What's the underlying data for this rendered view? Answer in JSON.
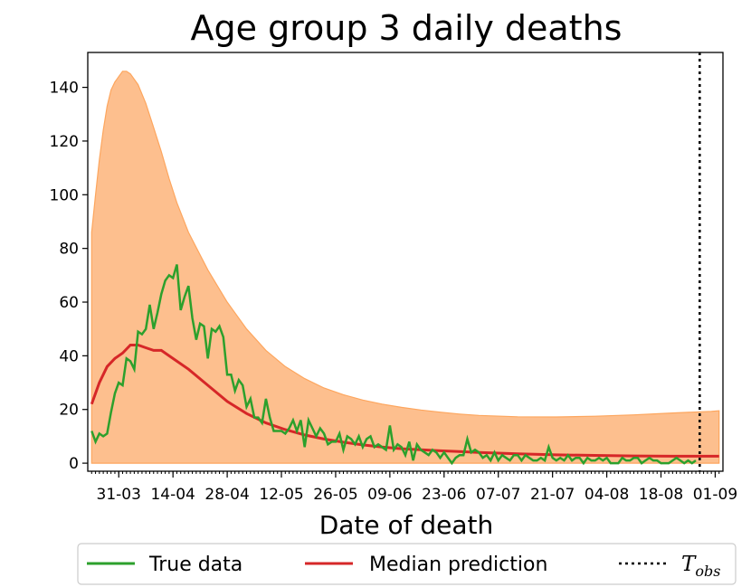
{
  "chart_data": {
    "type": "line",
    "title": "Age group 3 daily deaths",
    "xlabel": "Date of death",
    "ylabel": "",
    "x_start_label": "24-03",
    "x_end_day": 162,
    "xlim": [
      -1,
      163
    ],
    "ylim": [
      -3,
      153
    ],
    "yticks": [
      0,
      20,
      40,
      60,
      80,
      100,
      120,
      140
    ],
    "xticks": [
      {
        "day": 7,
        "label": "31-03"
      },
      {
        "day": 21,
        "label": "14-04"
      },
      {
        "day": 35,
        "label": "28-04"
      },
      {
        "day": 49,
        "label": "12-05"
      },
      {
        "day": 63,
        "label": "26-05"
      },
      {
        "day": 77,
        "label": "09-06"
      },
      {
        "day": 91,
        "label": "23-06"
      },
      {
        "day": 105,
        "label": "07-07"
      },
      {
        "day": 119,
        "label": "21-07"
      },
      {
        "day": 133,
        "label": "04-08"
      },
      {
        "day": 147,
        "label": "18-08"
      },
      {
        "day": 161,
        "label": "01-09"
      }
    ],
    "t_obs_day": 157,
    "series": [
      {
        "name": "True data",
        "color": "#2ca02c",
        "x_start": 0,
        "values": [
          12,
          8,
          11,
          10,
          11,
          19,
          26,
          30,
          29,
          39,
          38,
          35,
          49,
          48,
          50,
          59,
          50,
          56,
          63,
          68,
          70,
          69,
          74,
          57,
          62,
          66,
          54,
          46,
          52,
          51,
          39,
          50,
          49,
          51,
          47,
          33,
          33,
          27,
          31,
          29,
          21,
          24,
          17,
          17,
          15,
          24,
          17,
          12,
          12,
          12,
          11,
          13,
          16,
          12,
          16,
          6,
          16,
          13,
          10,
          13,
          11,
          7,
          8,
          8,
          11,
          5,
          10,
          9,
          7,
          10,
          6,
          9,
          10,
          6,
          7,
          6,
          5,
          14,
          5,
          7,
          6,
          3,
          8,
          1,
          7,
          5,
          4,
          3,
          5,
          4,
          2,
          4,
          2,
          0,
          2,
          3,
          3,
          9,
          4,
          5,
          4,
          2,
          3,
          1,
          4,
          1,
          3,
          2,
          1,
          3,
          3,
          1,
          3,
          2,
          1,
          1,
          2,
          1,
          6,
          2,
          1,
          2,
          1,
          3,
          1,
          2,
          2,
          0,
          2,
          1,
          1,
          2,
          1,
          2,
          0,
          0,
          0,
          2,
          1,
          1,
          2,
          2,
          0,
          1,
          2,
          1,
          1,
          0,
          0,
          0,
          1,
          2,
          1,
          0,
          1,
          0,
          1
        ]
      },
      {
        "name": "Median prediction",
        "color": "#d62728",
        "points": [
          [
            0,
            22
          ],
          [
            2,
            30
          ],
          [
            4,
            36
          ],
          [
            6,
            39
          ],
          [
            8,
            41
          ],
          [
            10,
            44
          ],
          [
            12,
            44
          ],
          [
            14,
            43
          ],
          [
            16,
            42
          ],
          [
            18,
            42
          ],
          [
            20,
            40
          ],
          [
            25,
            35
          ],
          [
            30,
            29
          ],
          [
            35,
            23
          ],
          [
            40,
            18.5
          ],
          [
            45,
            15
          ],
          [
            50,
            12.5
          ],
          [
            55,
            10.5
          ],
          [
            60,
            9
          ],
          [
            65,
            7.8
          ],
          [
            70,
            6.8
          ],
          [
            75,
            6
          ],
          [
            80,
            5.4
          ],
          [
            85,
            5
          ],
          [
            90,
            4.6
          ],
          [
            95,
            4.3
          ],
          [
            100,
            4
          ],
          [
            110,
            3.5
          ],
          [
            120,
            3.1
          ],
          [
            130,
            2.9
          ],
          [
            140,
            2.7
          ],
          [
            150,
            2.6
          ],
          [
            162,
            2.6
          ]
        ]
      }
    ],
    "band": {
      "name": "Prediction interval",
      "color": "#fdbf8e",
      "upper": [
        [
          0,
          86
        ],
        [
          1,
          100
        ],
        [
          2,
          113
        ],
        [
          3,
          124
        ],
        [
          4,
          133
        ],
        [
          5,
          139
        ],
        [
          6,
          142
        ],
        [
          7,
          144
        ],
        [
          8,
          146
        ],
        [
          9,
          146
        ],
        [
          10,
          145
        ],
        [
          12,
          141
        ],
        [
          14,
          134
        ],
        [
          16,
          125
        ],
        [
          18,
          116
        ],
        [
          20,
          106
        ],
        [
          22,
          97
        ],
        [
          25,
          86
        ],
        [
          30,
          72
        ],
        [
          35,
          60
        ],
        [
          40,
          50
        ],
        [
          45,
          42
        ],
        [
          50,
          36
        ],
        [
          55,
          31.5
        ],
        [
          60,
          28
        ],
        [
          65,
          25.5
        ],
        [
          70,
          23.5
        ],
        [
          75,
          22
        ],
        [
          80,
          20.8
        ],
        [
          85,
          19.8
        ],
        [
          90,
          19
        ],
        [
          95,
          18.3
        ],
        [
          100,
          17.8
        ],
        [
          110,
          17.3
        ],
        [
          120,
          17.2
        ],
        [
          130,
          17.5
        ],
        [
          140,
          18
        ],
        [
          150,
          18.7
        ],
        [
          160,
          19.3
        ],
        [
          162,
          19.5
        ]
      ],
      "lower": [
        [
          0,
          0
        ],
        [
          162,
          0
        ]
      ]
    },
    "legend": {
      "placement": "bottom-outside",
      "entries": [
        "True data",
        "Median prediction"
      ],
      "t_obs_label": "T",
      "t_obs_subscript": "obs"
    }
  }
}
